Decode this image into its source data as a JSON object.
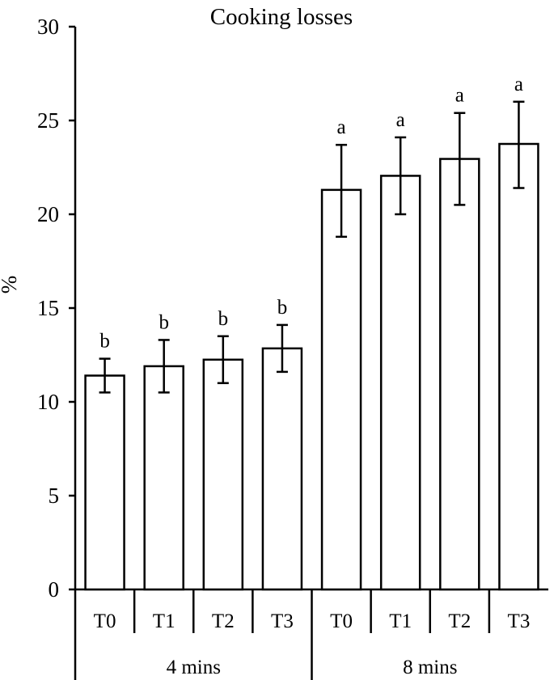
{
  "chart_data": {
    "type": "bar",
    "title": "Cooking losses",
    "ylabel": "%",
    "xlabel": "",
    "ylim": [
      0,
      30
    ],
    "yticks": [
      0,
      5,
      10,
      15,
      20,
      25,
      30
    ],
    "grid": false,
    "groups": [
      {
        "label": "4 mins",
        "bars": [
          {
            "category": "T0",
            "value": 11.4,
            "err_low": 10.5,
            "err_high": 12.3,
            "sig": "b"
          },
          {
            "category": "T1",
            "value": 11.9,
            "err_low": 10.5,
            "err_high": 13.3,
            "sig": "b"
          },
          {
            "category": "T2",
            "value": 12.25,
            "err_low": 11.0,
            "err_high": 13.5,
            "sig": "b"
          },
          {
            "category": "T3",
            "value": 12.85,
            "err_low": 11.6,
            "err_high": 14.1,
            "sig": "b"
          }
        ]
      },
      {
        "label": "8 mins",
        "bars": [
          {
            "category": "T0",
            "value": 21.3,
            "err_low": 18.8,
            "err_high": 23.7,
            "sig": "a"
          },
          {
            "category": "T1",
            "value": 22.05,
            "err_low": 20.0,
            "err_high": 24.1,
            "sig": "a"
          },
          {
            "category": "T2",
            "value": 22.95,
            "err_low": 20.5,
            "err_high": 25.4,
            "sig": "a"
          },
          {
            "category": "T3",
            "value": 23.75,
            "err_low": 21.4,
            "err_high": 26.0,
            "sig": "a"
          }
        ]
      }
    ]
  }
}
